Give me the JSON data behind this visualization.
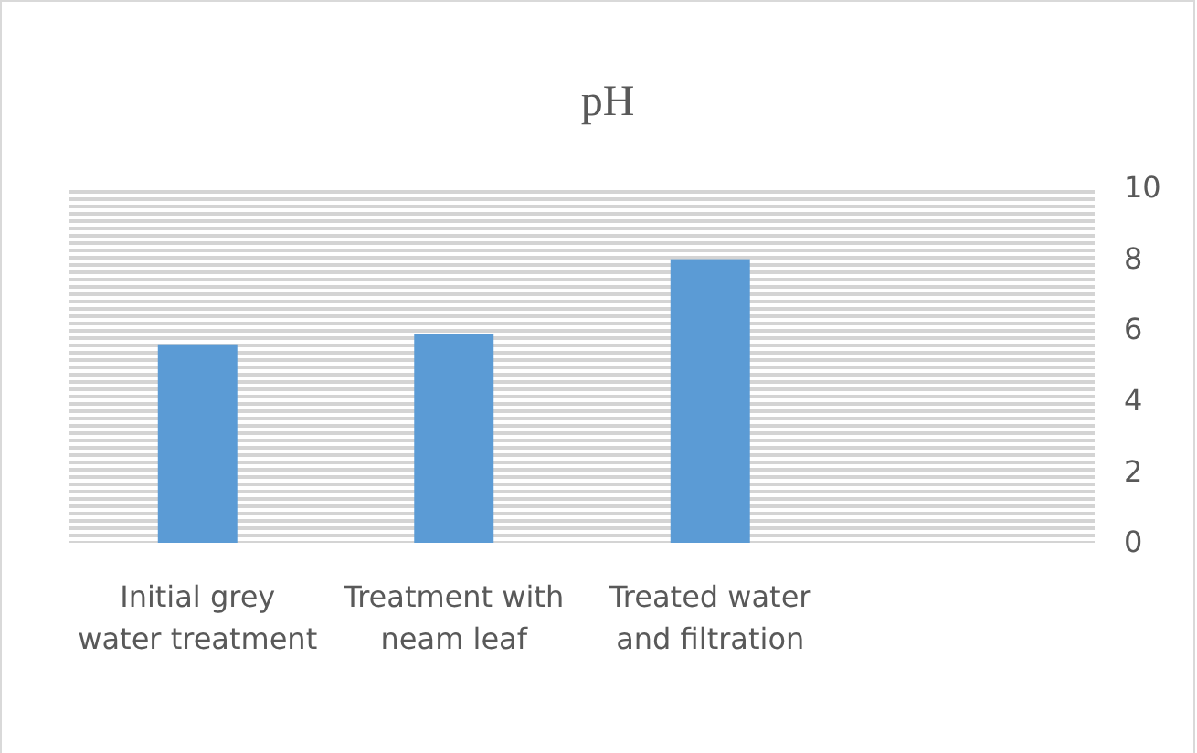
{
  "chart_data": {
    "type": "bar",
    "title": "pH",
    "categories": [
      "Initial grey water treatment",
      "Treatment with neam leaf",
      "Treated water and filtration",
      null
    ],
    "values": [
      5.6,
      5.9,
      8.0,
      null
    ],
    "color": "#5b9bd5",
    "ylim": [
      0,
      10
    ],
    "yticks": [
      0,
      2,
      4,
      6,
      8,
      10
    ],
    "grid": false
  }
}
